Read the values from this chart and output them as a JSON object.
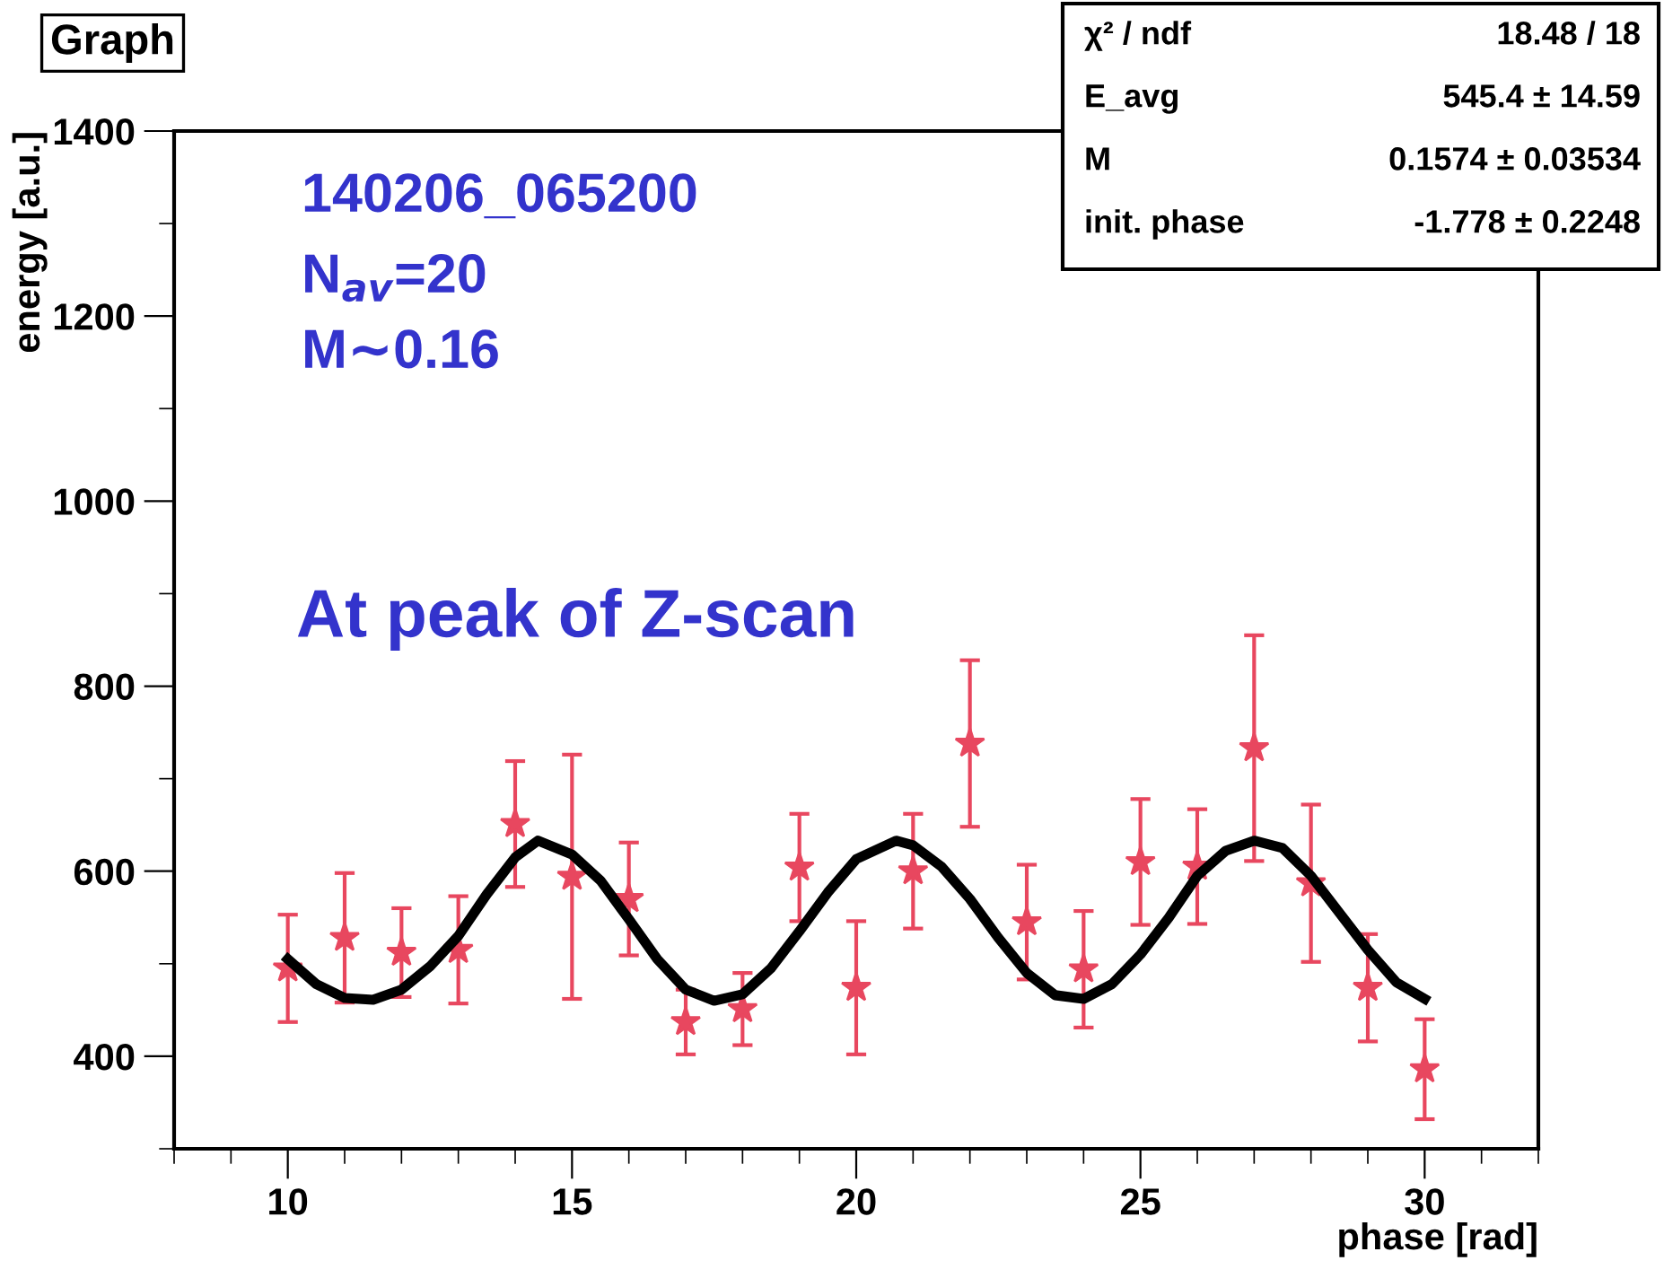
{
  "chart_data": {
    "type": "scatter",
    "title": "Graph",
    "xlabel": "phase [rad]",
    "ylabel": "energy [a.u.]",
    "xlim": [
      8,
      32
    ],
    "xticks": [
      10,
      15,
      20,
      25,
      30
    ],
    "ylim": [
      300,
      1400
    ],
    "yticks": [
      400,
      600,
      800,
      1000,
      1200,
      1400
    ],
    "grid": false,
    "annotations": [
      "140206_065200",
      "N$_{av}$=20",
      "M∼0.16",
      "At peak of Z-scan",
      "χ² / ndf",
      "18.48 / 18",
      "E_avg",
      "545.4 ± 14.59",
      "M",
      "0.1574 ± 0.03534",
      "init. phase",
      "-1.778 ± 0.2248"
    ],
    "series": [
      {
        "color": "#e8475f",
        "marker": "star",
        "x": [
          10,
          11,
          12,
          13,
          14,
          15,
          16,
          17,
          18,
          19,
          20,
          21,
          22,
          23,
          24,
          25,
          26,
          27,
          28,
          29,
          30
        ],
        "values": [
          495,
          528,
          512,
          515,
          651,
          594,
          570,
          437,
          451,
          604,
          474,
          600,
          738,
          545,
          494,
          610,
          605,
          733,
          587,
          474,
          386
        ],
        "errors": [
          58,
          70,
          48,
          58,
          68,
          132,
          61,
          35,
          39,
          58,
          72,
          62,
          90,
          62,
          63,
          68,
          62,
          122,
          85,
          58,
          54
        ]
      },
      {
        "type": "line",
        "color": "#000000",
        "marker": "none",
        "line_style": "solid",
        "x": [
          10,
          10.5,
          11,
          11.5,
          12,
          12.5,
          13,
          13.5,
          14,
          14.4,
          15,
          15.5,
          16,
          16.5,
          17,
          17.5,
          18,
          18.5,
          19,
          19.5,
          20,
          20.7,
          21,
          21.5,
          22,
          22.5,
          23,
          23.5,
          24,
          24.5,
          25,
          25.5,
          26,
          26.5,
          27,
          27.5,
          28,
          28.5,
          29,
          29.5,
          30
        ],
        "values": [
          505,
          478,
          463,
          461,
          472,
          497,
          530,
          575,
          615,
          633,
          618,
          590,
          548,
          505,
          472,
          460,
          467,
          495,
          535,
          577,
          613,
          633,
          628,
          605,
          570,
          528,
          490,
          466,
          462,
          478,
          510,
          550,
          595,
          622,
          633,
          625,
          595,
          555,
          515,
          480,
          462
        ]
      }
    ]
  }
}
